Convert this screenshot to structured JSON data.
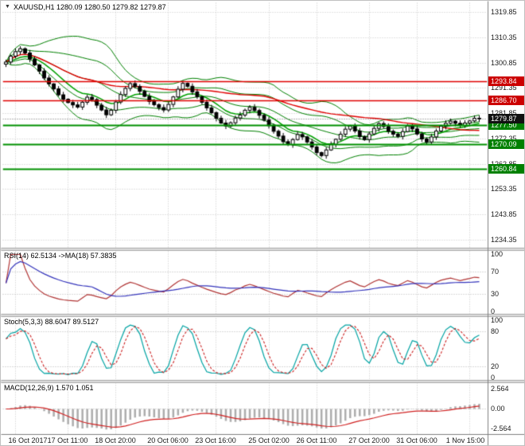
{
  "header": {
    "dropdown_icon": "▼",
    "symbol_line": "XAUUSD,H1  1280.09 1280.50 1279.82 1279.87"
  },
  "colors": {
    "background": "#ffffff",
    "grid": "#c9c9c9",
    "axis_text": "#1a1a1a",
    "candle_outline": "#000000",
    "candle_bull_fill": "#ffffff",
    "candle_bear_fill": "#000000",
    "bollinger": "#008000",
    "ma_fast_green": "#00a000",
    "ma_slow_red": "#e00000",
    "level_red": "#e00000",
    "level_green": "#009000",
    "tag_red": "#cc0000",
    "tag_green": "#008000",
    "tag_black": "#111111",
    "rsi_line": "#b03333",
    "rsi_ma": "#3333bb",
    "stoch_k": "#00a3a3",
    "stoch_d": "#cc2222",
    "macd_hist": "#adadad",
    "macd_signal": "#d02020",
    "divider": "#dcdcdc",
    "separator": "#808080"
  },
  "x_axis": {
    "labels": [
      "16 Oct 2017",
      "17 Oct 11:00",
      "18 Oct 20:00",
      "20 Oct 06:00",
      "23 Oct 16:00",
      "25 Oct 02:00",
      "26 Oct 11:00",
      "27 Oct 20:00",
      "31 Oct 06:00",
      "1 Nov 15:00"
    ]
  },
  "main_chart": {
    "y_ticks": [
      1319.85,
      1310.35,
      1300.85,
      1291.35,
      1281.85,
      1272.35,
      1262.85,
      1253.35,
      1243.85,
      1234.35
    ],
    "levels": [
      {
        "price": 1293.84,
        "label": "1293.84",
        "color": "red"
      },
      {
        "price": 1286.7,
        "label": "1286.70",
        "color": "red"
      },
      {
        "price": 1277.5,
        "label": "1277.50",
        "color": "green"
      },
      {
        "price": 1270.09,
        "label": "1270.09",
        "color": "green"
      },
      {
        "price": 1260.84,
        "label": "1260.84",
        "color": "green"
      }
    ],
    "current_price": {
      "price": 1279.87,
      "label": "1279.87"
    }
  },
  "indicators": {
    "rsi": {
      "label": "RSI(14) 62.5134 ->MA(18) 57.3835",
      "ticks": [
        {
          "v": 100,
          "label": "100"
        },
        {
          "v": 70,
          "label": "70"
        },
        {
          "v": 30,
          "label": "30"
        },
        {
          "v": 0,
          "label": "0"
        }
      ],
      "levels": [
        70,
        30
      ]
    },
    "stoch": {
      "label": "Stoch(5,3,3) 88.6047 89.5127",
      "ticks": [
        {
          "v": 100,
          "label": "100"
        },
        {
          "v": 80,
          "label": "80"
        },
        {
          "v": 20,
          "label": "20"
        },
        {
          "v": 0,
          "label": "0"
        }
      ],
      "levels": [
        80,
        20
      ]
    },
    "macd": {
      "label": "MACD(12,26,9) 1.570 1.051",
      "ticks": [
        {
          "v": 2.564,
          "label": "2.564"
        },
        {
          "v": 0,
          "label": "0.00"
        },
        {
          "v": -2.564,
          "label": "-2.564"
        }
      ],
      "levels": [
        0
      ]
    }
  },
  "chart_data": {
    "type": "candlestick",
    "title": "XAUUSD,H1",
    "symbol": "XAUUSD",
    "timeframe": "H1",
    "last_ohlc": {
      "open": 1280.09,
      "high": 1280.5,
      "low": 1279.82,
      "close": 1279.87
    },
    "y_range": [
      1234.35,
      1319.85
    ],
    "x_tick_labels": [
      "16 Oct 2017",
      "17 Oct 11:00",
      "18 Oct 20:00",
      "20 Oct 06:00",
      "23 Oct 16:00",
      "25 Oct 02:00",
      "26 Oct 11:00",
      "27 Oct 20:00",
      "31 Oct 06:00",
      "1 Nov 15:00"
    ],
    "horizontal_levels": [
      1293.84,
      1286.7,
      1277.5,
      1270.09,
      1260.84
    ],
    "closes": [
      1301.2,
      1303.4,
      1305.1,
      1306.2,
      1304.6,
      1302.3,
      1300.1,
      1297.8,
      1295.2,
      1293.0,
      1291.1,
      1288.9,
      1287.2,
      1286.0,
      1285.1,
      1284.3,
      1286.1,
      1288.0,
      1287.1,
      1285.0,
      1283.2,
      1281.4,
      1283.1,
      1286.2,
      1289.0,
      1291.3,
      1293.1,
      1292.0,
      1290.2,
      1288.3,
      1286.4,
      1285.2,
      1284.1,
      1283.2,
      1285.3,
      1288.1,
      1291.0,
      1293.2,
      1292.1,
      1290.0,
      1288.2,
      1286.1,
      1284.0,
      1282.2,
      1280.1,
      1278.3,
      1277.2,
      1278.4,
      1280.2,
      1281.3,
      1283.1,
      1284.2,
      1283.0,
      1281.2,
      1279.4,
      1277.3,
      1275.2,
      1273.4,
      1271.3,
      1270.2,
      1272.1,
      1274.0,
      1273.1,
      1271.2,
      1269.3,
      1267.2,
      1266.1,
      1268.2,
      1270.3,
      1272.2,
      1274.1,
      1276.0,
      1277.2,
      1275.3,
      1273.2,
      1272.1,
      1274.2,
      1276.3,
      1278.1,
      1277.0,
      1275.2,
      1274.1,
      1273.3,
      1275.1,
      1277.2,
      1276.1,
      1274.2,
      1272.3,
      1271.2,
      1273.1,
      1275.3,
      1277.1,
      1278.2,
      1279.0,
      1278.2,
      1277.4,
      1278.3,
      1279.1,
      1280.1,
      1279.87
    ],
    "indicator_settings": {
      "bollinger_period": 20,
      "bollinger_dev": 2,
      "ma_fast_period": 10,
      "ma_slow_period": 55,
      "rsi_period": 14,
      "rsi_ma_period": 18,
      "rsi_last": 62.5134,
      "rsi_ma_last": 57.3835,
      "stoch_params": [
        5,
        3,
        3
      ],
      "stoch_k_last": 88.6047,
      "stoch_d_last": 89.5127,
      "macd_params": [
        12,
        26,
        9
      ],
      "macd_last": 1.57,
      "macd_signal_last": 1.051
    }
  }
}
